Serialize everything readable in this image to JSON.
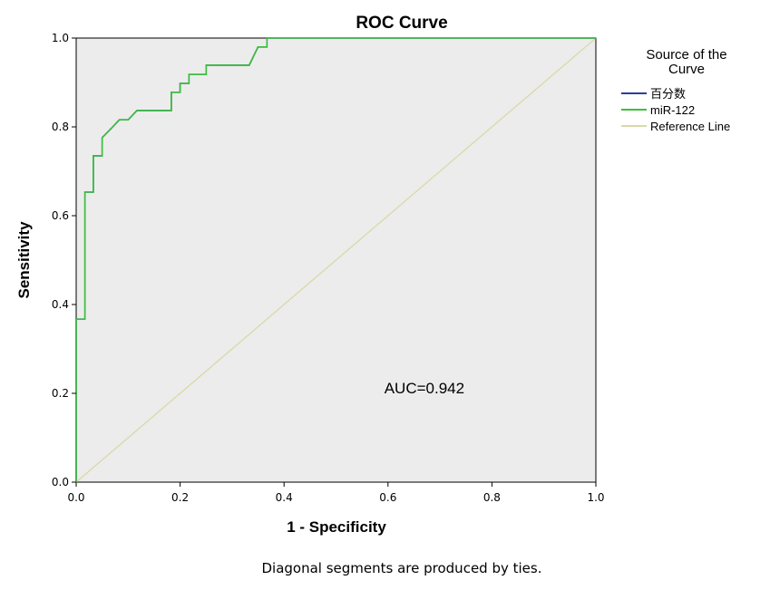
{
  "chart_data": {
    "type": "line",
    "title": "ROC Curve",
    "xlabel": "1 - Specificity",
    "ylabel": "Sensitivity",
    "xlim": [
      0,
      1
    ],
    "ylim": [
      0,
      1
    ],
    "xticks": [
      "0.0",
      "0.2",
      "0.4",
      "0.6",
      "0.8",
      "1.0"
    ],
    "yticks": [
      "0.0",
      "0.2",
      "0.4",
      "0.6",
      "0.8",
      "1.0"
    ],
    "grid": false,
    "legend": {
      "title": "Source of the Curve",
      "placement": "right",
      "entries": [
        {
          "name": "百分数",
          "color": "#2a3d9c"
        },
        {
          "name": "miR-122",
          "color": "#3cbf3c"
        },
        {
          "name": "Reference Line",
          "color": "#d9d9a8"
        }
      ]
    },
    "series": [
      {
        "name": "百分数",
        "color": "#2a3d9c",
        "x": [
          0.0,
          0.0,
          0.017,
          0.017,
          0.033,
          0.033,
          0.05,
          0.05,
          0.067,
          0.067,
          0.083,
          0.083,
          0.1,
          0.1,
          0.117,
          0.117,
          0.183,
          0.183,
          0.2,
          0.2,
          0.217,
          0.217,
          0.233,
          0.233,
          0.25,
          0.25,
          0.333,
          0.35,
          0.35,
          0.367,
          0.367,
          0.4,
          1.0
        ],
        "y": [
          0.0,
          0.367,
          0.367,
          0.653,
          0.653,
          0.735,
          0.735,
          0.776,
          0.796,
          0.796,
          0.816,
          0.816,
          0.816,
          0.816,
          0.837,
          0.837,
          0.837,
          0.878,
          0.878,
          0.898,
          0.898,
          0.918,
          0.918,
          0.918,
          0.918,
          0.939,
          0.939,
          0.98,
          0.98,
          0.98,
          1.0,
          1.0,
          1.0
        ]
      },
      {
        "name": "miR-122",
        "color": "#3cbf3c",
        "x": [
          0.0,
          0.0,
          0.017,
          0.017,
          0.033,
          0.033,
          0.05,
          0.05,
          0.067,
          0.067,
          0.083,
          0.083,
          0.1,
          0.1,
          0.117,
          0.117,
          0.183,
          0.183,
          0.2,
          0.2,
          0.217,
          0.217,
          0.233,
          0.233,
          0.25,
          0.25,
          0.333,
          0.35,
          0.35,
          0.367,
          0.367,
          0.4,
          1.0
        ],
        "y": [
          0.0,
          0.367,
          0.367,
          0.653,
          0.653,
          0.735,
          0.735,
          0.776,
          0.796,
          0.796,
          0.816,
          0.816,
          0.816,
          0.816,
          0.837,
          0.837,
          0.837,
          0.878,
          0.878,
          0.898,
          0.898,
          0.918,
          0.918,
          0.918,
          0.918,
          0.939,
          0.939,
          0.98,
          0.98,
          0.98,
          1.0,
          1.0,
          1.0
        ]
      },
      {
        "name": "Reference Line",
        "color": "#d9d9a8",
        "x": [
          0,
          1
        ],
        "y": [
          0,
          1
        ]
      }
    ],
    "annotations": [
      {
        "text": "AUC=0.942",
        "x": 0.67,
        "y": 0.2
      }
    ],
    "footnote": "Diagonal segments are produced by ties.",
    "plot_background": "#ececec"
  }
}
